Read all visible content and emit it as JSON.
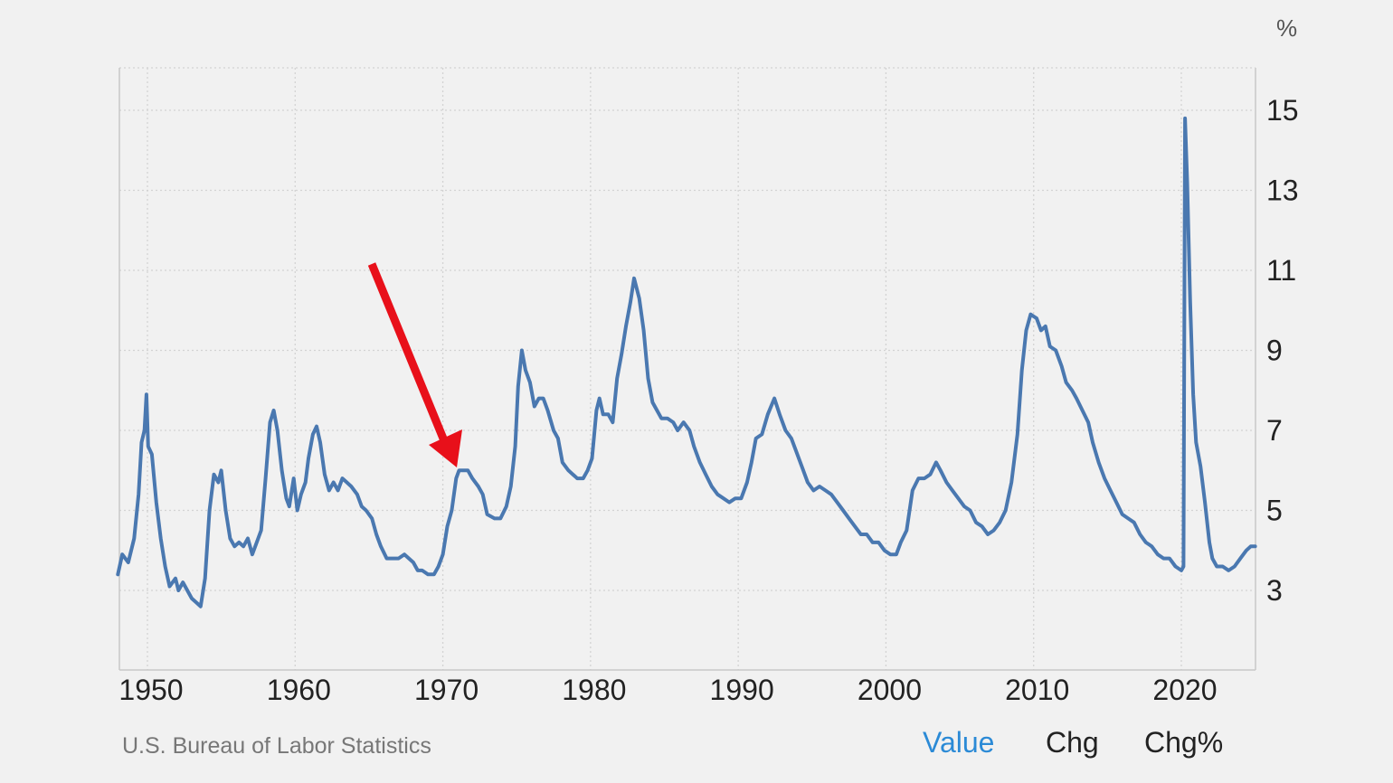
{
  "chart_data": {
    "type": "line",
    "title": "",
    "xlabel": "",
    "ylabel": "",
    "unit": "%",
    "x_ticks": [
      "1950",
      "1960",
      "1970",
      "1980",
      "1990",
      "2000",
      "2010",
      "2020"
    ],
    "y_ticks": [
      "3",
      "5",
      "7",
      "9",
      "11",
      "13",
      "15"
    ],
    "xlim": [
      1948,
      2025
    ],
    "ylim": [
      1.0,
      16.0
    ],
    "grid": true,
    "source": "U.S. Bureau of Labor Statistics",
    "series": [
      {
        "name": "",
        "color": "#4a78b0",
        "points": [
          [
            1948.0,
            3.4
          ],
          [
            1948.3,
            3.9
          ],
          [
            1948.7,
            3.7
          ],
          [
            1949.1,
            4.3
          ],
          [
            1949.4,
            5.4
          ],
          [
            1949.6,
            6.7
          ],
          [
            1949.8,
            7.0
          ],
          [
            1949.93,
            7.9
          ],
          [
            1950.05,
            6.6
          ],
          [
            1950.3,
            6.4
          ],
          [
            1950.6,
            5.2
          ],
          [
            1950.9,
            4.3
          ],
          [
            1951.2,
            3.6
          ],
          [
            1951.5,
            3.1
          ],
          [
            1951.9,
            3.3
          ],
          [
            1952.1,
            3.0
          ],
          [
            1952.4,
            3.2
          ],
          [
            1952.7,
            3.0
          ],
          [
            1953.0,
            2.8
          ],
          [
            1953.3,
            2.7
          ],
          [
            1953.6,
            2.6
          ],
          [
            1953.9,
            3.3
          ],
          [
            1954.2,
            5.0
          ],
          [
            1954.5,
            5.9
          ],
          [
            1954.8,
            5.7
          ],
          [
            1955.0,
            6.0
          ],
          [
            1955.3,
            5.0
          ],
          [
            1955.6,
            4.3
          ],
          [
            1955.9,
            4.1
          ],
          [
            1956.2,
            4.2
          ],
          [
            1956.5,
            4.1
          ],
          [
            1956.8,
            4.3
          ],
          [
            1957.1,
            3.9
          ],
          [
            1957.4,
            4.2
          ],
          [
            1957.7,
            4.5
          ],
          [
            1958.0,
            5.8
          ],
          [
            1958.3,
            7.2
          ],
          [
            1958.55,
            7.5
          ],
          [
            1958.8,
            7.0
          ],
          [
            1959.1,
            6.0
          ],
          [
            1959.4,
            5.3
          ],
          [
            1959.6,
            5.1
          ],
          [
            1959.9,
            5.8
          ],
          [
            1960.15,
            5.0
          ],
          [
            1960.4,
            5.4
          ],
          [
            1960.7,
            5.7
          ],
          [
            1960.9,
            6.3
          ],
          [
            1961.2,
            6.9
          ],
          [
            1961.45,
            7.1
          ],
          [
            1961.7,
            6.7
          ],
          [
            1962.0,
            5.9
          ],
          [
            1962.3,
            5.5
          ],
          [
            1962.6,
            5.7
          ],
          [
            1962.9,
            5.5
          ],
          [
            1963.2,
            5.8
          ],
          [
            1963.5,
            5.7
          ],
          [
            1963.8,
            5.6
          ],
          [
            1964.2,
            5.4
          ],
          [
            1964.5,
            5.1
          ],
          [
            1964.8,
            5.0
          ],
          [
            1965.2,
            4.8
          ],
          [
            1965.5,
            4.4
          ],
          [
            1965.8,
            4.1
          ],
          [
            1966.2,
            3.8
          ],
          [
            1966.6,
            3.8
          ],
          [
            1967.0,
            3.8
          ],
          [
            1967.4,
            3.9
          ],
          [
            1967.7,
            3.8
          ],
          [
            1968.0,
            3.7
          ],
          [
            1968.3,
            3.5
          ],
          [
            1968.6,
            3.5
          ],
          [
            1969.0,
            3.4
          ],
          [
            1969.4,
            3.4
          ],
          [
            1969.7,
            3.6
          ],
          [
            1970.0,
            3.9
          ],
          [
            1970.3,
            4.6
          ],
          [
            1970.6,
            5.0
          ],
          [
            1970.9,
            5.8
          ],
          [
            1971.1,
            6.0
          ],
          [
            1971.4,
            6.0
          ],
          [
            1971.7,
            6.0
          ],
          [
            1972.0,
            5.8
          ],
          [
            1972.4,
            5.6
          ],
          [
            1972.7,
            5.4
          ],
          [
            1973.0,
            4.9
          ],
          [
            1973.5,
            4.8
          ],
          [
            1973.9,
            4.8
          ],
          [
            1974.3,
            5.1
          ],
          [
            1974.6,
            5.6
          ],
          [
            1974.9,
            6.6
          ],
          [
            1975.1,
            8.1
          ],
          [
            1975.35,
            9.0
          ],
          [
            1975.6,
            8.5
          ],
          [
            1975.9,
            8.2
          ],
          [
            1976.2,
            7.6
          ],
          [
            1976.5,
            7.8
          ],
          [
            1976.8,
            7.8
          ],
          [
            1977.1,
            7.5
          ],
          [
            1977.5,
            7.0
          ],
          [
            1977.8,
            6.8
          ],
          [
            1978.1,
            6.2
          ],
          [
            1978.5,
            6.0
          ],
          [
            1978.8,
            5.9
          ],
          [
            1979.1,
            5.8
          ],
          [
            1979.5,
            5.8
          ],
          [
            1979.8,
            6.0
          ],
          [
            1980.1,
            6.3
          ],
          [
            1980.4,
            7.5
          ],
          [
            1980.6,
            7.8
          ],
          [
            1980.85,
            7.4
          ],
          [
            1981.2,
            7.4
          ],
          [
            1981.5,
            7.2
          ],
          [
            1981.8,
            8.3
          ],
          [
            1982.1,
            8.9
          ],
          [
            1982.4,
            9.6
          ],
          [
            1982.7,
            10.2
          ],
          [
            1982.95,
            10.8
          ],
          [
            1983.3,
            10.3
          ],
          [
            1983.6,
            9.5
          ],
          [
            1983.9,
            8.3
          ],
          [
            1984.2,
            7.7
          ],
          [
            1984.5,
            7.5
          ],
          [
            1984.8,
            7.3
          ],
          [
            1985.2,
            7.3
          ],
          [
            1985.6,
            7.2
          ],
          [
            1985.9,
            7.0
          ],
          [
            1986.3,
            7.2
          ],
          [
            1986.7,
            7.0
          ],
          [
            1987.0,
            6.6
          ],
          [
            1987.4,
            6.2
          ],
          [
            1987.8,
            5.9
          ],
          [
            1988.2,
            5.6
          ],
          [
            1988.6,
            5.4
          ],
          [
            1989.0,
            5.3
          ],
          [
            1989.4,
            5.2
          ],
          [
            1989.8,
            5.3
          ],
          [
            1990.2,
            5.3
          ],
          [
            1990.6,
            5.7
          ],
          [
            1990.9,
            6.2
          ],
          [
            1991.2,
            6.8
          ],
          [
            1991.6,
            6.9
          ],
          [
            1992.0,
            7.4
          ],
          [
            1992.45,
            7.8
          ],
          [
            1992.8,
            7.4
          ],
          [
            1993.2,
            7.0
          ],
          [
            1993.6,
            6.8
          ],
          [
            1993.9,
            6.5
          ],
          [
            1994.3,
            6.1
          ],
          [
            1994.7,
            5.7
          ],
          [
            1995.1,
            5.5
          ],
          [
            1995.5,
            5.6
          ],
          [
            1995.9,
            5.5
          ],
          [
            1996.3,
            5.4
          ],
          [
            1996.7,
            5.2
          ],
          [
            1997.1,
            5.0
          ],
          [
            1997.5,
            4.8
          ],
          [
            1997.9,
            4.6
          ],
          [
            1998.3,
            4.4
          ],
          [
            1998.7,
            4.4
          ],
          [
            1999.1,
            4.2
          ],
          [
            1999.5,
            4.2
          ],
          [
            1999.9,
            4.0
          ],
          [
            2000.3,
            3.9
          ],
          [
            2000.7,
            3.9
          ],
          [
            2001.0,
            4.2
          ],
          [
            2001.4,
            4.5
          ],
          [
            2001.8,
            5.5
          ],
          [
            2002.2,
            5.8
          ],
          [
            2002.6,
            5.8
          ],
          [
            2003.0,
            5.9
          ],
          [
            2003.4,
            6.2
          ],
          [
            2003.7,
            6.0
          ],
          [
            2004.1,
            5.7
          ],
          [
            2004.5,
            5.5
          ],
          [
            2004.9,
            5.3
          ],
          [
            2005.3,
            5.1
          ],
          [
            2005.7,
            5.0
          ],
          [
            2006.1,
            4.7
          ],
          [
            2006.5,
            4.6
          ],
          [
            2006.9,
            4.4
          ],
          [
            2007.3,
            4.5
          ],
          [
            2007.7,
            4.7
          ],
          [
            2008.1,
            5.0
          ],
          [
            2008.5,
            5.7
          ],
          [
            2008.9,
            6.9
          ],
          [
            2009.2,
            8.5
          ],
          [
            2009.5,
            9.5
          ],
          [
            2009.8,
            9.9
          ],
          [
            2010.2,
            9.8
          ],
          [
            2010.5,
            9.5
          ],
          [
            2010.8,
            9.6
          ],
          [
            2011.1,
            9.1
          ],
          [
            2011.5,
            9.0
          ],
          [
            2011.9,
            8.6
          ],
          [
            2012.2,
            8.2
          ],
          [
            2012.6,
            8.0
          ],
          [
            2012.9,
            7.8
          ],
          [
            2013.3,
            7.5
          ],
          [
            2013.7,
            7.2
          ],
          [
            2014.0,
            6.7
          ],
          [
            2014.4,
            6.2
          ],
          [
            2014.8,
            5.8
          ],
          [
            2015.2,
            5.5
          ],
          [
            2015.6,
            5.2
          ],
          [
            2016.0,
            4.9
          ],
          [
            2016.4,
            4.8
          ],
          [
            2016.8,
            4.7
          ],
          [
            2017.2,
            4.4
          ],
          [
            2017.6,
            4.2
          ],
          [
            2018.0,
            4.1
          ],
          [
            2018.4,
            3.9
          ],
          [
            2018.8,
            3.8
          ],
          [
            2019.2,
            3.8
          ],
          [
            2019.6,
            3.6
          ],
          [
            2020.0,
            3.5
          ],
          [
            2020.15,
            3.6
          ],
          [
            2020.25,
            14.8
          ],
          [
            2020.4,
            13.2
          ],
          [
            2020.6,
            10.2
          ],
          [
            2020.8,
            7.9
          ],
          [
            2021.0,
            6.7
          ],
          [
            2021.3,
            6.1
          ],
          [
            2021.6,
            5.2
          ],
          [
            2021.9,
            4.2
          ],
          [
            2022.1,
            3.8
          ],
          [
            2022.4,
            3.6
          ],
          [
            2022.8,
            3.6
          ],
          [
            2023.2,
            3.5
          ],
          [
            2023.6,
            3.6
          ],
          [
            2024.0,
            3.8
          ],
          [
            2024.4,
            4.0
          ],
          [
            2024.7,
            4.1
          ],
          [
            2025.0,
            4.1
          ]
        ]
      }
    ]
  },
  "annotation": {
    "color": "#e8101a"
  },
  "tabs": [
    {
      "label": "Value",
      "active": true
    },
    {
      "label": "Chg",
      "active": false
    },
    {
      "label": "Chg%",
      "active": false
    }
  ]
}
